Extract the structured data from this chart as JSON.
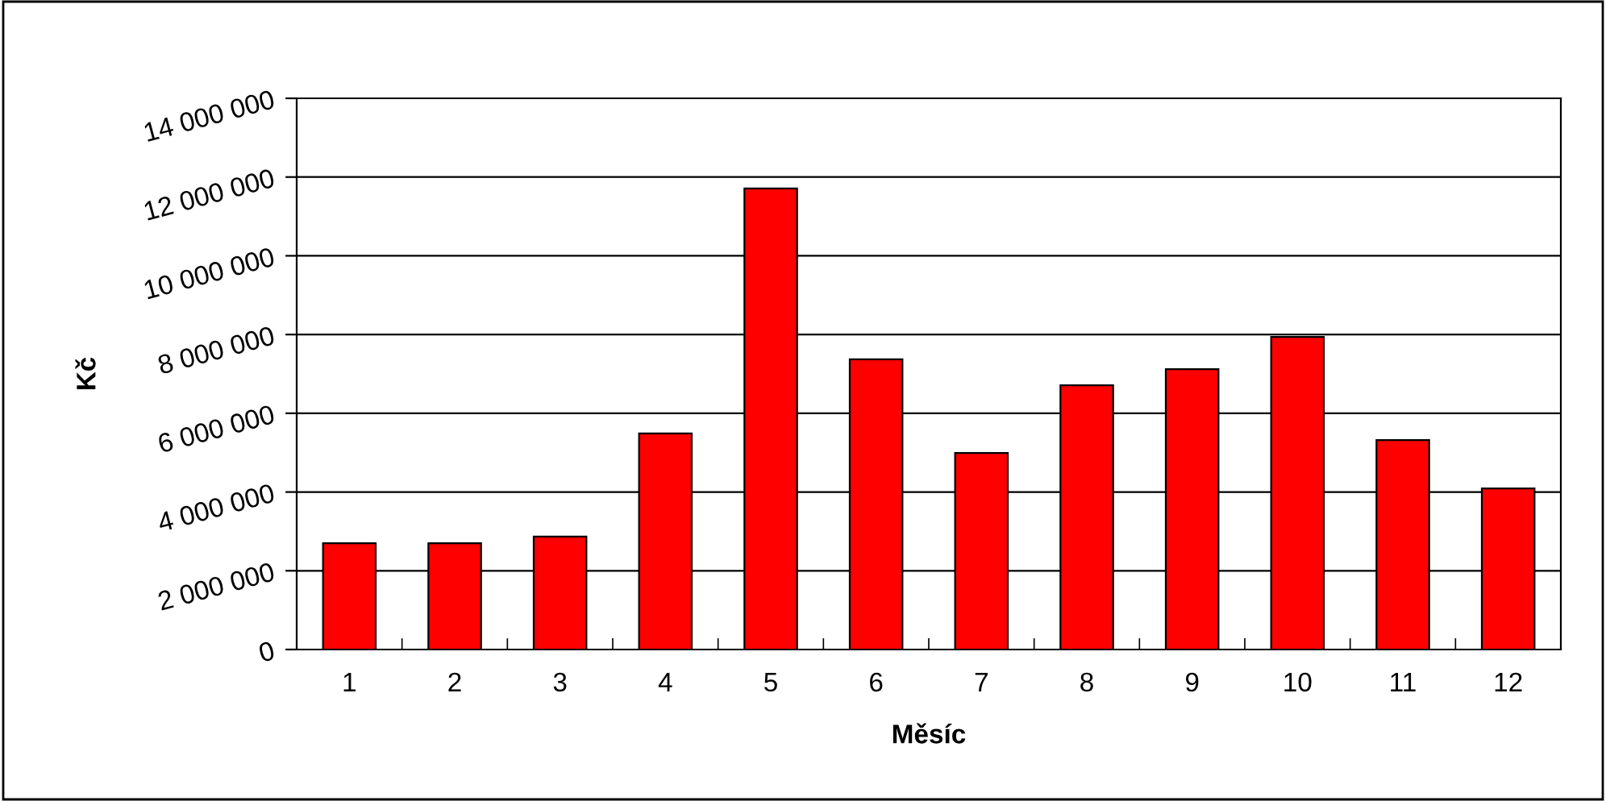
{
  "chart_data": {
    "type": "bar",
    "xlabel": "Měsíc",
    "ylabel": "Kč",
    "categories": [
      "1",
      "2",
      "3",
      "4",
      "5",
      "6",
      "7",
      "8",
      "9",
      "10",
      "11",
      "12"
    ],
    "series": [
      {
        "color": "#ff0000",
        "values": [
          2700000,
          2700000,
          2870000,
          5490000,
          11710000,
          7370000,
          4990000,
          6710000,
          7120000,
          7940000,
          5320000,
          4090000
        ]
      }
    ],
    "ylim": [
      0,
      14000000
    ],
    "yticks": [
      {
        "value": 0,
        "label": "0"
      },
      {
        "value": 2000000,
        "label": "2 000 000"
      },
      {
        "value": 4000000,
        "label": "4 000 000"
      },
      {
        "value": 6000000,
        "label": "6 000 000"
      },
      {
        "value": 8000000,
        "label": "8 000 000"
      },
      {
        "value": 10000000,
        "label": "10 000 000"
      },
      {
        "value": 12000000,
        "label": "12 000 000"
      },
      {
        "value": 14000000,
        "label": "14 000 000"
      }
    ],
    "grid": "y",
    "legend": false
  }
}
